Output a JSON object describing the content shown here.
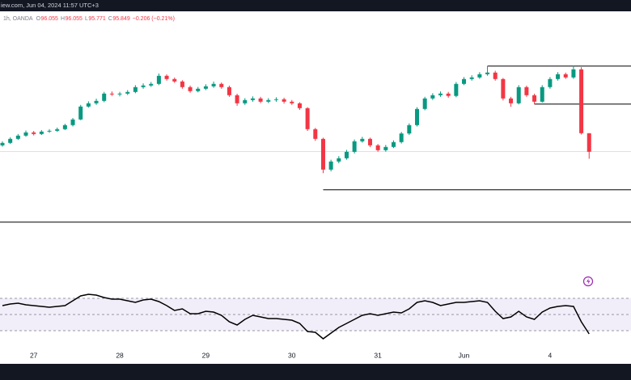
{
  "header": {
    "source": "iew.com, Jun 04, 2024 11:57 UTC+3",
    "interval": "1h, OANDA",
    "legend": [
      {
        "label": "O",
        "value": 96.055
      },
      {
        "label": "H",
        "value": 96.055
      },
      {
        "label": "L",
        "value": 95.771
      },
      {
        "label": "C",
        "value": 95.849
      }
    ],
    "change": "−0.206 (−0.21%)"
  },
  "chart_data": {
    "type": "candlestick",
    "up_color": "#089981",
    "down_color": "#f23645",
    "categories": [
      null,
      null,
      null,
      null,
      "27",
      null,
      null,
      null,
      null,
      null,
      null,
      null,
      null,
      null,
      null,
      "28",
      null,
      null,
      null,
      null,
      null,
      null,
      null,
      null,
      null,
      null,
      "29",
      null,
      null,
      null,
      null,
      null,
      null,
      null,
      null,
      null,
      null,
      "30",
      null,
      null,
      null,
      null,
      null,
      null,
      null,
      null,
      null,
      null,
      "31",
      null,
      null,
      null,
      null,
      null,
      null,
      null,
      null,
      null,
      null,
      "Jun",
      null,
      null,
      null,
      null,
      null,
      null,
      null,
      null,
      null,
      null,
      "4",
      null,
      null,
      null,
      null,
      null
    ],
    "open": [
      95.92,
      95.947,
      95.992,
      96.028,
      96.064,
      96.046,
      96.073,
      96.082,
      96.1,
      96.145,
      96.208,
      96.352,
      96.388,
      96.415,
      96.496,
      96.487,
      96.496,
      96.514,
      96.568,
      96.586,
      96.604,
      96.694,
      96.658,
      96.631,
      96.568,
      96.523,
      96.55,
      96.577,
      96.604,
      96.568,
      96.478,
      96.388,
      96.424,
      96.442,
      96.406,
      96.424,
      96.433,
      96.406,
      96.388,
      96.334,
      96.1,
      95.992,
      95.65,
      95.74,
      95.776,
      95.848,
      95.965,
      95.992,
      95.92,
      95.866,
      95.902,
      95.956,
      96.052,
      96.145,
      96.325,
      96.442,
      96.478,
      96.496,
      96.47,
      96.604,
      96.658,
      96.676,
      96.712,
      96.73,
      96.658,
      96.442,
      96.388,
      96.568,
      96.478,
      96.406,
      96.568,
      96.658,
      96.712,
      96.676,
      96.766,
      96.055
    ],
    "high": [
      95.965,
      96.01,
      96.046,
      96.085,
      96.08,
      96.09,
      96.1,
      96.118,
      96.16,
      96.225,
      96.37,
      96.41,
      96.44,
      96.515,
      96.52,
      96.515,
      96.535,
      96.59,
      96.61,
      96.625,
      96.72,
      96.71,
      96.675,
      96.645,
      96.585,
      96.57,
      96.6,
      96.63,
      96.62,
      96.585,
      96.495,
      96.445,
      96.465,
      96.46,
      96.445,
      96.455,
      96.45,
      96.425,
      96.4,
      96.345,
      96.115,
      96.005,
      95.76,
      95.8,
      95.87,
      95.985,
      96.015,
      96.005,
      95.935,
      95.925,
      95.975,
      96.07,
      96.165,
      96.345,
      96.46,
      96.5,
      96.52,
      96.515,
      96.625,
      96.68,
      96.7,
      96.735,
      96.802,
      96.75,
      96.67,
      96.46,
      96.59,
      96.585,
      96.495,
      96.59,
      96.68,
      96.735,
      96.73,
      96.81,
      96.79,
      96.055
    ],
    "low": [
      95.905,
      95.935,
      95.98,
      96.015,
      96.03,
      96.035,
      96.06,
      96.07,
      96.09,
      96.13,
      96.2,
      96.34,
      96.37,
      96.4,
      96.47,
      96.465,
      96.48,
      96.5,
      96.55,
      96.57,
      96.59,
      96.64,
      96.615,
      96.55,
      96.505,
      96.51,
      96.535,
      96.56,
      96.55,
      96.46,
      96.36,
      96.37,
      96.405,
      96.39,
      96.39,
      96.405,
      96.385,
      96.37,
      96.315,
      96.08,
      95.97,
      95.61,
      95.63,
      95.72,
      95.76,
      95.83,
      95.95,
      95.9,
      95.85,
      95.85,
      95.89,
      95.94,
      96.035,
      96.13,
      96.31,
      96.425,
      96.46,
      96.45,
      96.455,
      96.59,
      96.64,
      96.66,
      96.695,
      96.64,
      96.42,
      96.35,
      96.375,
      96.46,
      96.379,
      96.395,
      96.55,
      96.64,
      96.66,
      96.66,
      96.04,
      95.771
    ],
    "close": [
      95.947,
      95.992,
      96.028,
      96.064,
      96.046,
      96.073,
      96.082,
      96.1,
      96.145,
      96.208,
      96.352,
      96.388,
      96.415,
      96.496,
      96.487,
      96.496,
      96.514,
      96.568,
      96.586,
      96.604,
      96.694,
      96.658,
      96.631,
      96.568,
      96.523,
      96.55,
      96.577,
      96.604,
      96.568,
      96.478,
      96.388,
      96.424,
      96.442,
      96.406,
      96.424,
      96.433,
      96.406,
      96.388,
      96.334,
      96.1,
      95.992,
      95.65,
      95.74,
      95.776,
      95.848,
      95.965,
      95.992,
      95.92,
      95.866,
      95.902,
      95.956,
      96.052,
      96.145,
      96.325,
      96.442,
      96.478,
      96.496,
      96.47,
      96.604,
      96.658,
      96.676,
      96.712,
      96.73,
      96.658,
      96.442,
      96.388,
      96.568,
      96.478,
      96.406,
      96.568,
      96.658,
      96.712,
      96.676,
      96.766,
      96.055,
      95.849
    ],
    "ylim": [
      95.0,
      97.403
    ],
    "hlines": [
      {
        "value": 96.802,
        "from": 62
      },
      {
        "value": 96.379,
        "from": 68
      },
      {
        "value": 95.425,
        "from": 41
      },
      {
        "value": 95.065,
        "from": 0
      }
    ],
    "rsi": {
      "color": "#000000",
      "ylim": [
        10,
        90
      ],
      "levels": [
        70,
        50,
        30
      ],
      "values": [
        61,
        63,
        64,
        62,
        61,
        60,
        59,
        60,
        61,
        67,
        73,
        75,
        74,
        71,
        69,
        69,
        67,
        65,
        68,
        69,
        66,
        61,
        55,
        57,
        51,
        51,
        54,
        53,
        49,
        41,
        37,
        44,
        49,
        47,
        45,
        45,
        44,
        43,
        39,
        29,
        28,
        20,
        27,
        34,
        39,
        44,
        49,
        51,
        49,
        51,
        53,
        52,
        57,
        65,
        67,
        65,
        61,
        63,
        65,
        65,
        66,
        67,
        65,
        54,
        45,
        47,
        54,
        47,
        44,
        53,
        58,
        60,
        61,
        60,
        41,
        26
      ]
    }
  }
}
